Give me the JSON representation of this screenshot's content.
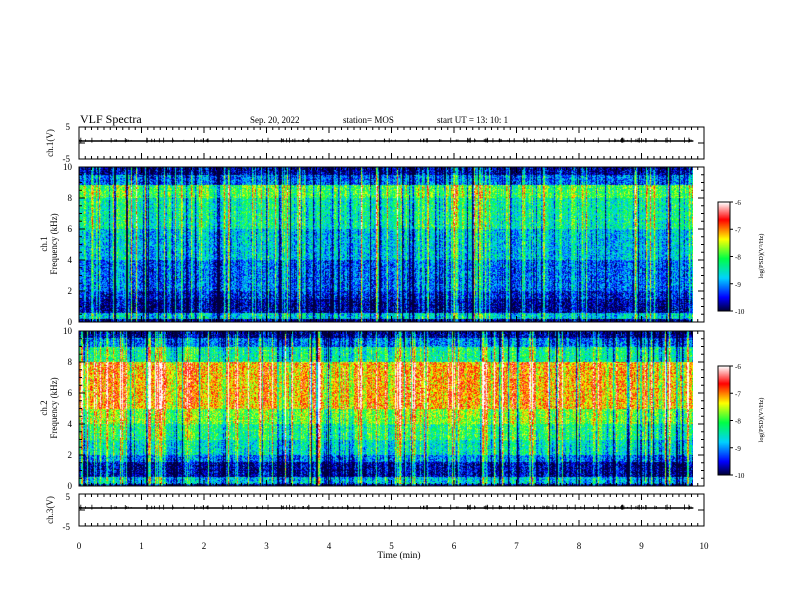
{
  "header": {
    "title": "VLF Spectra",
    "date": "Sep. 20, 2022",
    "station": "station= MOS",
    "start_time": "start  UT  =   13: 10: 1"
  },
  "chart_data": [
    {
      "type": "line",
      "panel": "ch1-voltage",
      "ylabel": "ch.1(V)",
      "ylim": [
        -5,
        5
      ],
      "y_tick_labels": [
        "5",
        "-5"
      ],
      "baseline": 0
    },
    {
      "type": "heatmap",
      "panel": "ch1-spectrogram",
      "ylabel_line1": "ch.1",
      "ylabel_line2": "Frequency  (kHz)",
      "ylim": [
        0,
        10
      ],
      "y_tick_labels": [
        "0",
        "2",
        "4",
        "6",
        "8",
        "10"
      ],
      "colorbar": {
        "label": "log(PSD)(V²/Hz)",
        "range": [
          -10,
          -6
        ],
        "tick_labels": [
          "-6",
          "-7",
          "-8",
          "-9",
          "-10"
        ],
        "colormap": [
          "#ffffff",
          "#ff0000",
          "#ffff00",
          "#00ff00",
          "#00ffff",
          "#0000ff",
          "#000050"
        ]
      },
      "band_profile": "ch1"
    },
    {
      "type": "heatmap",
      "panel": "ch2-spectrogram",
      "ylabel_line1": "ch.2",
      "ylabel_line2": "Frequency  (kHz)",
      "ylim": [
        0,
        10
      ],
      "y_tick_labels": [
        "0",
        "2",
        "4",
        "6",
        "8",
        "10"
      ],
      "colorbar": {
        "label": "log(PSD)(V²/Hz)",
        "range": [
          -10,
          -6
        ],
        "tick_labels": [
          "-6",
          "-7",
          "-8",
          "-9",
          "-10"
        ],
        "colormap": [
          "#ffffff",
          "#ff0000",
          "#ffff00",
          "#00ff00",
          "#00ffff",
          "#0000ff",
          "#000050"
        ]
      },
      "band_profile": "ch2"
    },
    {
      "type": "line",
      "panel": "ch3-voltage",
      "ylabel": "ch.3(V)",
      "ylim": [
        -5,
        5
      ],
      "y_tick_labels": [
        "5",
        "-5"
      ],
      "baseline": 0
    }
  ],
  "x_axis": {
    "label": "Time  (min)",
    "xlim": [
      0,
      10
    ],
    "tick_labels": [
      "0",
      "1",
      "2",
      "3",
      "4",
      "5",
      "6",
      "7",
      "8",
      "9",
      "10"
    ],
    "data_end": 9.83
  }
}
